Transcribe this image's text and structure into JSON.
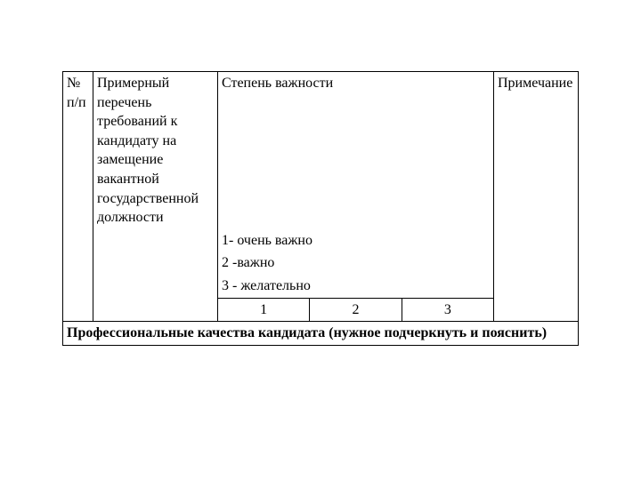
{
  "table": {
    "headers": {
      "num": "№ п/п",
      "requirements": "Примерный перечень требований к кандидату на замещение вакантной государственной должности",
      "importance": "Степень важности",
      "note": "Примечание"
    },
    "importance_items": {
      "i1": "1- очень важно",
      "i2": "2 -важно",
      "i3": "3 - желательно"
    },
    "subcols": {
      "c1": "1",
      "c2": "2",
      "c3": "3"
    },
    "footer": "Профессиональные качества кандидата (нужное подчеркнуть и пояснить)"
  },
  "style": {
    "font_family": "Times New Roman",
    "font_size_pt": 12,
    "text_color": "#000000",
    "background_color": "#ffffff",
    "border_color": "#000000"
  }
}
